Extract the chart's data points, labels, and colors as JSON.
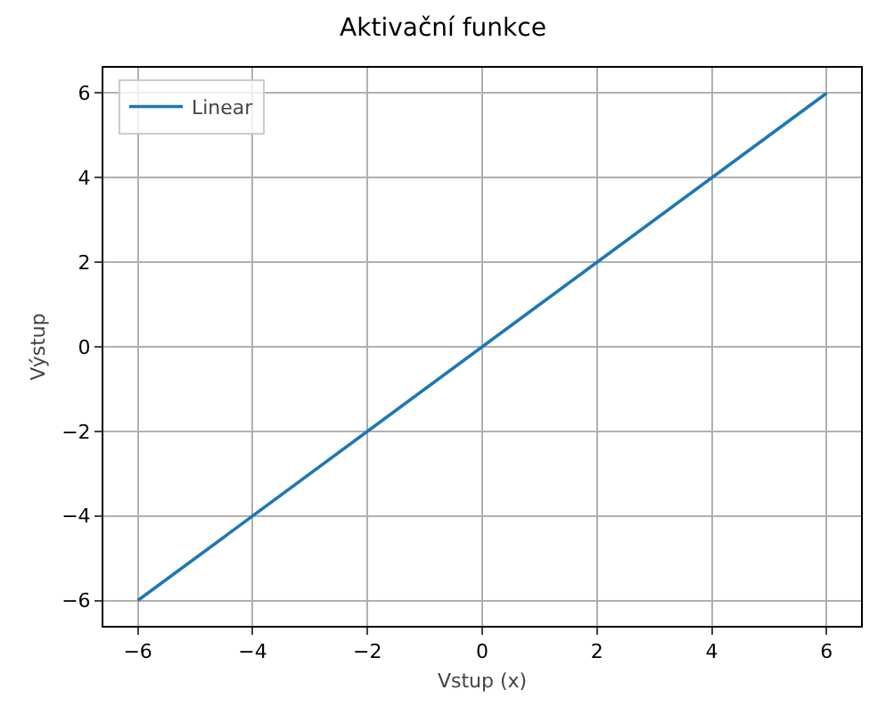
{
  "chart_data": {
    "type": "line",
    "title": "Aktivační funkce",
    "xlabel": "Vstup (x)",
    "ylabel": "Výstup",
    "x": [
      -6,
      6
    ],
    "series": [
      {
        "name": "Linear",
        "color": "#1f77b4",
        "values": [
          -6,
          6
        ]
      }
    ],
    "xlim": [
      -6.6,
      6.6
    ],
    "ylim": [
      -6.6,
      6.6
    ],
    "xticks": [
      -6,
      -4,
      -2,
      0,
      2,
      4,
      6
    ],
    "yticks": [
      -6,
      -4,
      -2,
      0,
      2,
      4,
      6
    ],
    "grid": true,
    "legend": "top left",
    "marker": "none",
    "line_style": "solid"
  }
}
